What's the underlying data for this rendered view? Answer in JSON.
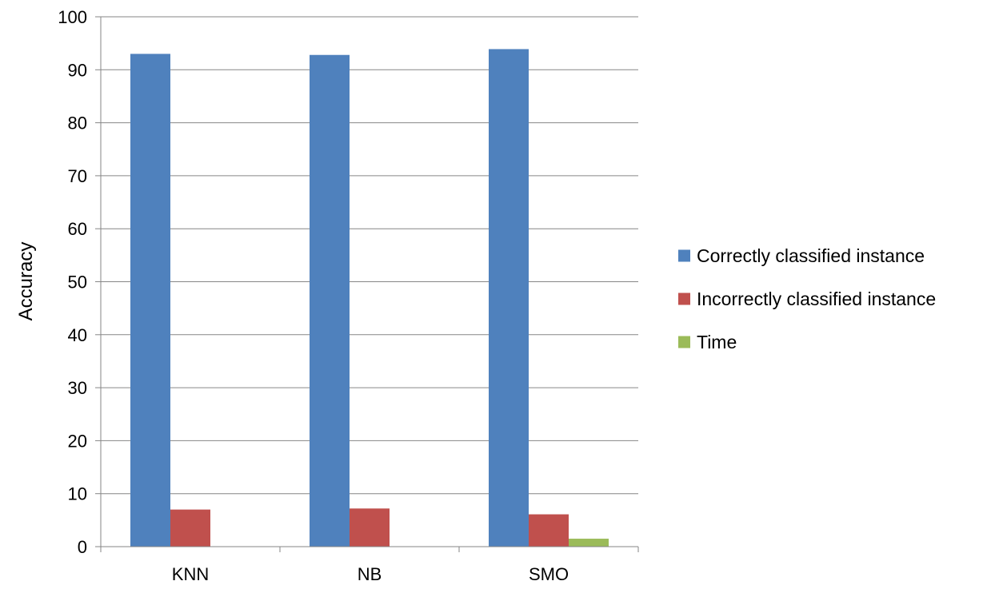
{
  "chart_data": {
    "type": "bar",
    "title": "",
    "xlabel": "",
    "ylabel": "Accuracy",
    "categories": [
      "KNN",
      "NB",
      "SMO"
    ],
    "ylim": [
      0,
      100
    ],
    "yticks": [
      0,
      10,
      20,
      30,
      40,
      50,
      60,
      70,
      80,
      90,
      100
    ],
    "grid": true,
    "legend_position": "right",
    "series": [
      {
        "name": "Correctly classified instance",
        "color": "#4f81bd",
        "values": [
          93.0,
          92.8,
          93.9
        ]
      },
      {
        "name": "Incorrectly classified instance",
        "color": "#c0504d",
        "values": [
          7.0,
          7.2,
          6.1
        ]
      },
      {
        "name": "Time",
        "color": "#9bbb59",
        "values": [
          0.0,
          0.0,
          1.5
        ]
      }
    ]
  }
}
